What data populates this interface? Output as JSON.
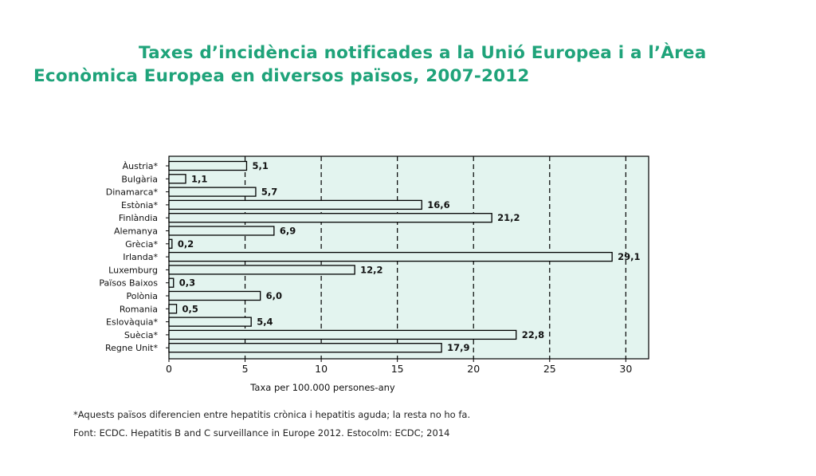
{
  "title_line1": "Taxes d’incidència notificades a la Unió Europea i a l’Àrea",
  "title_line2": "Econòmica Europea en diversos països, 2007-2012",
  "footnote": "*Aquests països diferencien entre hepatitis crònica i hepatitis aguda; la resta no ho fa.",
  "source": "Font: ECDC. Hepatitis B and C surveillance in Europe 2012. Estocolm: ECDC; 2014",
  "colors": {
    "title": "#1fa37a",
    "plot_bg": "#e3f4ef",
    "bar_fill": "#e3f4ef",
    "grid": "#000000"
  },
  "chart_data": {
    "type": "bar",
    "orientation": "horizontal",
    "categories": [
      "Àustria*",
      "Bulgària",
      "Dinamarca*",
      "Estònia*",
      "Finlàndia",
      "Alemanya",
      "Grècia*",
      "Irlanda*",
      "Luxemburg",
      "Països Baixos",
      "Polònia",
      "Romania",
      "Eslovàquia*",
      "Suècia*",
      "Regne Unit*"
    ],
    "values": [
      5.1,
      1.1,
      5.7,
      16.6,
      21.2,
      6.9,
      0.2,
      29.1,
      12.2,
      0.3,
      6.0,
      0.5,
      5.4,
      22.8,
      17.9
    ],
    "value_labels": [
      "5,1",
      "1,1",
      "5,7",
      "16,6",
      "21,2",
      "6,9",
      "0,2",
      "29,1",
      "12,2",
      "0,3",
      "6,0",
      "0,5",
      "5,4",
      "22,8",
      "17,9"
    ],
    "xlabel": "Taxa per 100.000 persones-any",
    "ylabel": "",
    "xlim": [
      0,
      31.5
    ],
    "xticks": [
      0,
      5,
      10,
      15,
      20,
      25,
      30
    ],
    "grid": "vertical dashed",
    "legend": "none"
  }
}
